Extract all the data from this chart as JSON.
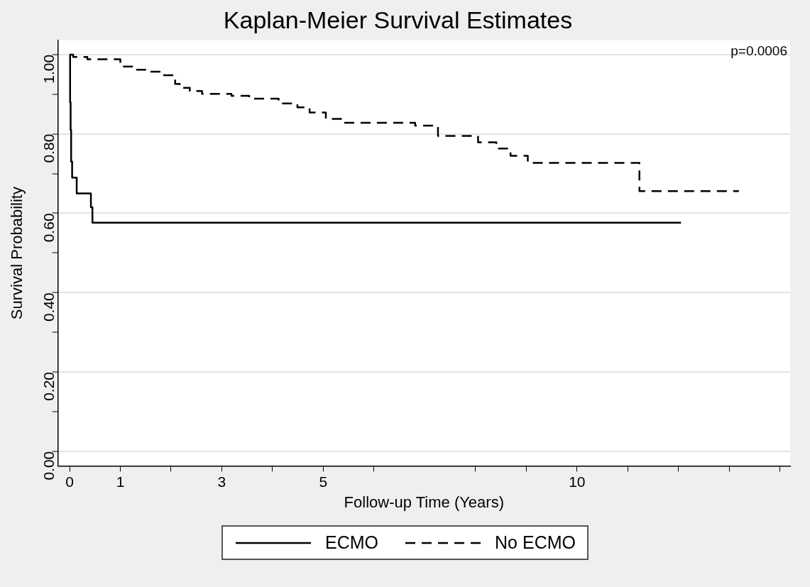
{
  "chart_data": {
    "type": "step",
    "title": "Kaplan-Meier Survival Estimates",
    "xlabel": "Follow-up Time (Years)",
    "ylabel": "Survival Probability",
    "annotations": [
      "p=0.0006"
    ],
    "xlim": [
      -0.23,
      14.2
    ],
    "xticks": [
      0,
      1,
      {
        "value": 2,
        "label": null
      },
      3,
      {
        "value": 4,
        "label": null
      },
      5,
      {
        "value": 6,
        "label": null
      },
      {
        "value": 8,
        "label": null
      },
      {
        "value": 9,
        "label": null
      },
      10,
      {
        "value": 11,
        "label": null
      },
      {
        "value": 12,
        "label": null
      },
      {
        "value": 13,
        "label": null
      },
      {
        "value": 14,
        "label": null
      }
    ],
    "ylim": [
      -0.037,
      1.036
    ],
    "yticks": [
      {
        "value": 0,
        "label": "0.00"
      },
      {
        "value": 0.1,
        "label": null
      },
      {
        "value": 0.2,
        "label": "0.20"
      },
      {
        "value": 0.3,
        "label": null
      },
      {
        "value": 0.4,
        "label": "0.40"
      },
      {
        "value": 0.5,
        "label": null
      },
      {
        "value": 0.6,
        "label": "0.60"
      },
      {
        "value": 0.7,
        "label": null
      },
      {
        "value": 0.8,
        "label": "0.80"
      },
      {
        "value": 0.9,
        "label": null
      },
      {
        "value": 1,
        "label": "1.00"
      }
    ],
    "grid": "y",
    "legend": "bottom",
    "marker": "none",
    "series": [
      {
        "name": "ECMO",
        "color": "#000000",
        "line_style": "solid",
        "x": [
          0,
          0.01,
          0.02,
          0.03,
          0.05,
          0.14,
          0.42,
          0.45,
          12.05
        ],
        "values": [
          1.0,
          0.88,
          0.81,
          0.73,
          0.69,
          0.65,
          0.615,
          0.576,
          0.576
        ]
      },
      {
        "name": "No ECMO",
        "color": "#000000",
        "line_style": "dashed",
        "x": [
          0,
          0.07,
          0.35,
          1.0,
          1.27,
          1.54,
          1.83,
          2.08,
          2.17,
          2.37,
          2.61,
          3.19,
          3.54,
          4.12,
          4.49,
          4.73,
          5.05,
          5.39,
          6.81,
          7.26,
          8.05,
          8.41,
          8.69,
          9.03,
          11.23,
          13.19
        ],
        "values": [
          1.0,
          0.994,
          0.988,
          0.97,
          0.962,
          0.957,
          0.948,
          0.926,
          0.916,
          0.908,
          0.901,
          0.896,
          0.889,
          0.877,
          0.867,
          0.854,
          0.838,
          0.828,
          0.821,
          0.795,
          0.779,
          0.763,
          0.745,
          0.727,
          0.656,
          0.656
        ]
      }
    ]
  }
}
